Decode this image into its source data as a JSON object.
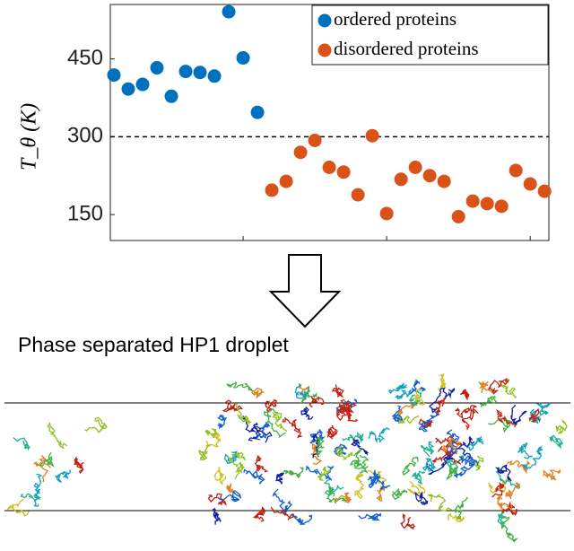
{
  "chart_data": {
    "type": "scatter",
    "ylabel": "T_θ (K)",
    "xlim": [
      0.75,
      31.3
    ],
    "xticks": [
      10,
      20,
      30
    ],
    "ylim": [
      100,
      555
    ],
    "yticks": [
      150,
      300,
      450
    ],
    "hline": 300,
    "legend": "upper right",
    "series": [
      {
        "name": "ordered proteins",
        "color": "#0072bd",
        "x": [
          1,
          2,
          3,
          4,
          5,
          6,
          7,
          8,
          9,
          10,
          11
        ],
        "values": [
          419,
          392,
          401,
          433,
          378,
          426,
          424,
          417,
          541,
          452,
          347
        ]
      },
      {
        "name": "disordered proteins",
        "color": "#d95319",
        "x": [
          12,
          13,
          14,
          15,
          16,
          17,
          18,
          19,
          20,
          21,
          22,
          23,
          24,
          25,
          26,
          27,
          28,
          29,
          30,
          31
        ],
        "values": [
          197,
          214,
          270,
          293,
          241,
          232,
          188,
          302,
          152,
          218,
          241,
          225,
          214,
          146,
          176,
          171,
          166,
          235,
          209,
          195
        ]
      }
    ]
  },
  "caption": "Phase separated HP1 droplet"
}
